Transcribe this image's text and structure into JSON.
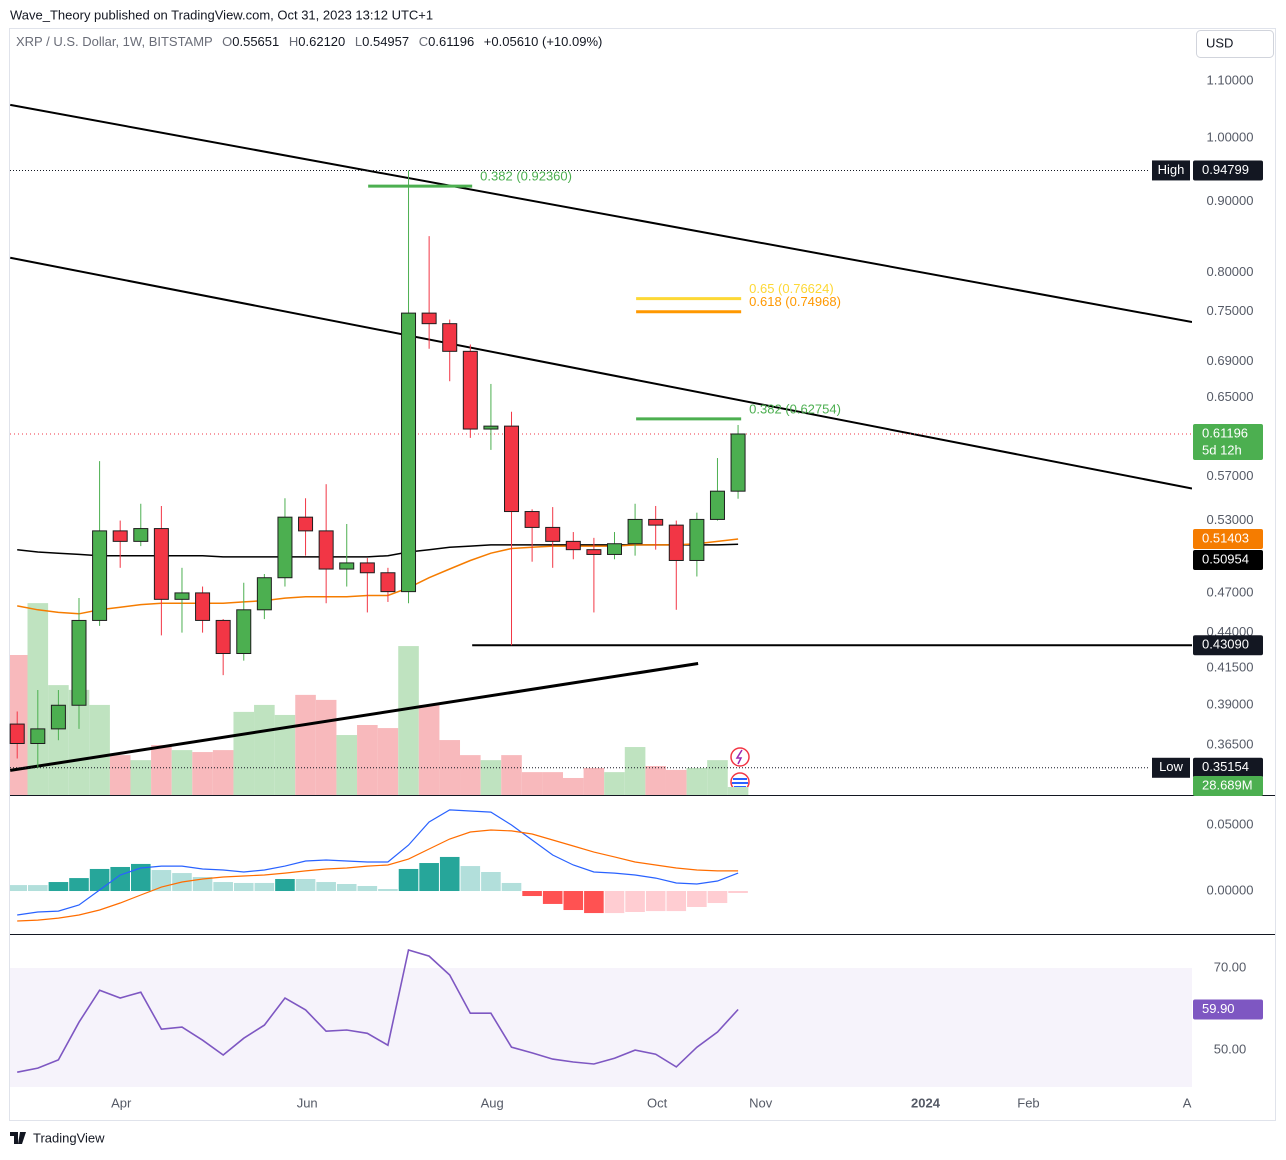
{
  "header": {
    "source": "Wave_Theory published on TradingView.com, Oct 31, 2023 13:12 UTC+1",
    "symbol": "XRP / U.S. Dollar, 1W, BITSTAMP",
    "ohlc": [
      {
        "key": "O",
        "value": "0.55651"
      },
      {
        "key": "H",
        "value": "0.62120"
      },
      {
        "key": "L",
        "value": "0.54957"
      },
      {
        "key": "C",
        "value": "0.61196"
      }
    ],
    "change": "+0.05610 (+10.09%)"
  },
  "currency_button": "USD",
  "footer": "TradingView",
  "chart_data": [
    {
      "type": "candlestick",
      "open": [
        0.378,
        0.366,
        0.375,
        0.39,
        0.449,
        0.521,
        0.512,
        0.523,
        0.465,
        0.47,
        0.449,
        0.425,
        0.457,
        0.482,
        0.533,
        0.521,
        0.489,
        0.494,
        0.486,
        0.471,
        0.748,
        0.735,
        0.702,
        0.617,
        0.62,
        0.538,
        0.524,
        0.512,
        0.505,
        0.501,
        0.51,
        0.531,
        0.526,
        0.496,
        0.531,
        0.55651
      ],
      "high": [
        0.386,
        0.4,
        0.4,
        0.466,
        0.585,
        0.53,
        0.545,
        0.543,
        0.49,
        0.475,
        0.45,
        0.478,
        0.485,
        0.55,
        0.55,
        0.563,
        0.527,
        0.498,
        0.49,
        0.94799,
        0.85,
        0.74,
        0.71,
        0.665,
        0.635,
        0.54,
        0.542,
        0.52,
        0.515,
        0.52,
        0.545,
        0.543,
        0.53,
        0.537,
        0.588,
        0.6212
      ],
      "low": [
        0.357,
        0.35154,
        0.368,
        0.375,
        0.445,
        0.49,
        0.508,
        0.438,
        0.44,
        0.44,
        0.41,
        0.42,
        0.45,
        0.475,
        0.5,
        0.462,
        0.475,
        0.455,
        0.463,
        0.462,
        0.705,
        0.668,
        0.608,
        0.596,
        0.4309,
        0.495,
        0.49,
        0.497,
        0.455,
        0.497,
        0.5,
        0.505,
        0.457,
        0.483,
        0.53,
        0.54957
      ],
      "close": [
        0.366,
        0.375,
        0.39,
        0.449,
        0.521,
        0.512,
        0.523,
        0.465,
        0.47,
        0.449,
        0.425,
        0.457,
        0.482,
        0.533,
        0.521,
        0.489,
        0.494,
        0.486,
        0.471,
        0.748,
        0.735,
        0.702,
        0.617,
        0.62,
        0.538,
        0.524,
        0.512,
        0.505,
        0.501,
        0.51,
        0.531,
        0.526,
        0.496,
        0.531,
        0.5565,
        0.61196
      ],
      "up_color": "#4caf50",
      "down_color": "#f23645",
      "border_color": "#1e1e1e",
      "countdown": "5d 12h",
      "high_label": "High",
      "low_label": "Low",
      "volume": {
        "values": [
          502,
          688,
          394,
          377,
          323,
          143,
          125,
          179,
          161,
          154,
          161,
          298,
          323,
          287,
          359,
          341,
          215,
          251,
          240,
          534,
          323,
          197,
          143,
          125,
          143,
          82,
          82,
          61,
          97,
          82,
          172,
          104,
          90,
          97,
          125,
          28.689
        ],
        "value_labels": [
          null,
          null,
          null,
          null,
          null,
          null,
          null,
          null,
          null,
          null,
          null,
          null,
          null,
          null,
          null,
          null,
          null,
          null,
          null,
          null,
          null,
          null,
          null,
          null,
          null,
          null,
          null,
          null,
          null,
          null,
          null,
          null,
          null,
          null,
          null,
          "28.689M"
        ],
        "lim": [
          0,
          2743
        ],
        "up_color": "#bfe3c0",
        "down_color": "#f8b9bc",
        "label_color": "#4caf50"
      },
      "moving_averages": [
        {
          "color": "#000000",
          "values": [
            0.505,
            0.503,
            0.502,
            0.501,
            0.5,
            0.5,
            0.5,
            0.5,
            0.5,
            0.5,
            0.499,
            0.499,
            0.499,
            0.499,
            0.499,
            0.499,
            0.499,
            0.499,
            0.5,
            0.503,
            0.505,
            0.507,
            0.508,
            0.509,
            0.509,
            0.509,
            0.509,
            0.509,
            0.509,
            0.509,
            0.509,
            0.509,
            0.509,
            0.509,
            0.509,
            0.50954
          ]
        },
        {
          "color": "#f57c00",
          "values": [
            0.46,
            0.457,
            0.455,
            0.454,
            0.457,
            0.459,
            0.461,
            0.462,
            0.462,
            0.462,
            0.462,
            0.463,
            0.464,
            0.466,
            0.467,
            0.467,
            0.467,
            0.468,
            0.468,
            0.474,
            0.482,
            0.489,
            0.496,
            0.502,
            0.506,
            0.507,
            0.508,
            0.508,
            0.508,
            0.508,
            0.509,
            0.509,
            0.509,
            0.51,
            0.512,
            0.51403
          ]
        }
      ],
      "fib_levels": [
        {
          "value": 0.9236,
          "label": "0.382 (0.92360)",
          "color": "#4caf50",
          "x": [
            17.04,
            22.09
          ]
        },
        {
          "value": 0.76624,
          "label": "0.65 (0.76624)",
          "color": "#fdd835",
          "x": [
            30.05,
            35.15
          ]
        },
        {
          "value": 0.74968,
          "label": "0.618 (0.74968)",
          "color": "#ff9800",
          "x": [
            30.05,
            35.15
          ]
        },
        {
          "value": 0.62754,
          "label": "0.382 (0.62754)",
          "color": "#4caf50",
          "x": [
            30.05,
            35.15
          ]
        }
      ],
      "support": {
        "value": 0.4309,
        "label": "0.43090",
        "x": [
          22.09,
          57.04
        ]
      },
      "trendlines": [
        {
          "x": [
            -0.34,
            57.04
          ],
          "y": [
            1.057,
            0.737
          ]
        },
        {
          "x": [
            -0.34,
            57.04
          ],
          "y": [
            0.82,
            0.559
          ]
        },
        {
          "x": [
            -0.34,
            33.06
          ],
          "y": [
            0.35,
            0.418
          ]
        }
      ],
      "log_scale": true,
      "xlim": [
        -0.35,
        57.04
      ],
      "xticks": [
        {
          "value": 5.05,
          "label": "Apr"
        },
        {
          "value": 14.08,
          "label": "Jun"
        },
        {
          "value": 23.06,
          "label": "Aug"
        },
        {
          "value": 31.07,
          "label": "Oct"
        },
        {
          "value": 36.1,
          "label": "Nov"
        },
        {
          "value": 44.1,
          "label": "2024"
        },
        {
          "value": 49.1,
          "label": "Feb"
        },
        {
          "value": 56.8,
          "label": "A"
        }
      ],
      "ylim": [
        0.336,
        1.197
      ],
      "yticks": [
        {
          "value": 1.1,
          "label": "1.10000"
        },
        {
          "value": 1,
          "label": "1.00000"
        },
        {
          "value": 0.9,
          "label": "0.90000"
        },
        {
          "value": 0.8,
          "label": "0.80000"
        },
        {
          "value": 0.75,
          "label": "0.75000"
        },
        {
          "value": 0.69,
          "label": "0.69000"
        },
        {
          "value": 0.65,
          "label": "0.65000"
        },
        {
          "value": 0.57,
          "label": "0.57000"
        },
        {
          "value": 0.53,
          "label": "0.53000"
        },
        {
          "value": 0.47,
          "label": "0.47000"
        },
        {
          "value": 0.44,
          "label": "0.44000"
        },
        {
          "value": 0.415,
          "label": "0.41500"
        },
        {
          "value": 0.39,
          "label": "0.39000"
        },
        {
          "value": 0.365,
          "label": "0.36500"
        }
      ]
    },
    {
      "type": "macd",
      "histogram": [
        0.0045,
        0.0045,
        0.0068,
        0.0098,
        0.0167,
        0.0182,
        0.0205,
        0.0159,
        0.0136,
        0.0106,
        0.0068,
        0.0061,
        0.0061,
        0.0091,
        0.0091,
        0.0068,
        0.0053,
        0.0038,
        0.0015,
        0.0167,
        0.0212,
        0.0258,
        0.0189,
        0.0144,
        0.0061,
        -0.0038,
        -0.0098,
        -0.0144,
        -0.0167,
        -0.0167,
        -0.0159,
        -0.0152,
        -0.0152,
        -0.0121,
        -0.0091,
        -0.0015
      ],
      "histogram_colors": {
        "rising_positive": "#26a69a",
        "falling_positive": "#b2dfdb",
        "falling_negative": "#ff5252",
        "rising_negative": "#ffcdd2"
      },
      "series": [
        {
          "color": "#2962ff",
          "values": [
            -0.0182,
            -0.0159,
            -0.0152,
            -0.0106,
            0.0008,
            0.0121,
            0.0174,
            0.0189,
            0.0189,
            0.0167,
            0.0159,
            0.0144,
            0.0159,
            0.0189,
            0.0227,
            0.0235,
            0.0227,
            0.022,
            0.022,
            0.0348,
            0.0523,
            0.0614,
            0.0606,
            0.0598,
            0.05,
            0.0386,
            0.0273,
            0.0197,
            0.0144,
            0.0136,
            0.0121,
            0.0098,
            0.0061,
            0.0053,
            0.0076,
            0.0136
          ]
        },
        {
          "color": "#ff6d00",
          "values": [
            -0.0227,
            -0.022,
            -0.0205,
            -0.0182,
            -0.0144,
            -0.0091,
            -0.003,
            0.003,
            0.0068,
            0.0091,
            0.0106,
            0.0114,
            0.0121,
            0.0136,
            0.0152,
            0.0167,
            0.0174,
            0.0189,
            0.0197,
            0.0242,
            0.0318,
            0.0394,
            0.0447,
            0.0462,
            0.0455,
            0.0432,
            0.0386,
            0.0341,
            0.0295,
            0.0258,
            0.022,
            0.0197,
            0.0174,
            0.0159,
            0.0152,
            0.0152
          ]
        }
      ],
      "ylim": [
        -0.0318,
        0.0712
      ],
      "yticks": [
        {
          "value": 0.05,
          "label": "0.05000"
        },
        {
          "value": 0,
          "label": "0.00000"
        }
      ]
    },
    {
      "type": "line",
      "series": [
        {
          "color": "#7e57c2",
          "values": [
            44.6,
            45.6,
            47.6,
            56.8,
            64.6,
            62.7,
            64.1,
            55.1,
            55.6,
            52.4,
            48.8,
            52.9,
            56.1,
            62.7,
            59.8,
            54.6,
            54.9,
            54.1,
            51.2,
            74.4,
            72.9,
            68.3,
            59,
            59,
            50.7,
            49.3,
            47.8,
            47.1,
            46.6,
            48,
            50,
            49,
            45.9,
            50.7,
            54.4,
            59.9
          ],
          "value_labels": [
            null,
            null,
            null,
            null,
            null,
            null,
            null,
            null,
            null,
            null,
            null,
            null,
            null,
            null,
            null,
            null,
            null,
            null,
            null,
            null,
            null,
            null,
            null,
            null,
            null,
            null,
            null,
            null,
            null,
            null,
            null,
            null,
            null,
            null,
            null,
            "59.90"
          ]
        }
      ],
      "band": [
        30,
        70
      ],
      "band_color": "#7e57c2",
      "ylim": [
        41,
        78.05
      ],
      "yticks": [
        {
          "value": 70,
          "label": "70.00"
        },
        {
          "value": 50,
          "label": "50.00"
        }
      ]
    }
  ]
}
